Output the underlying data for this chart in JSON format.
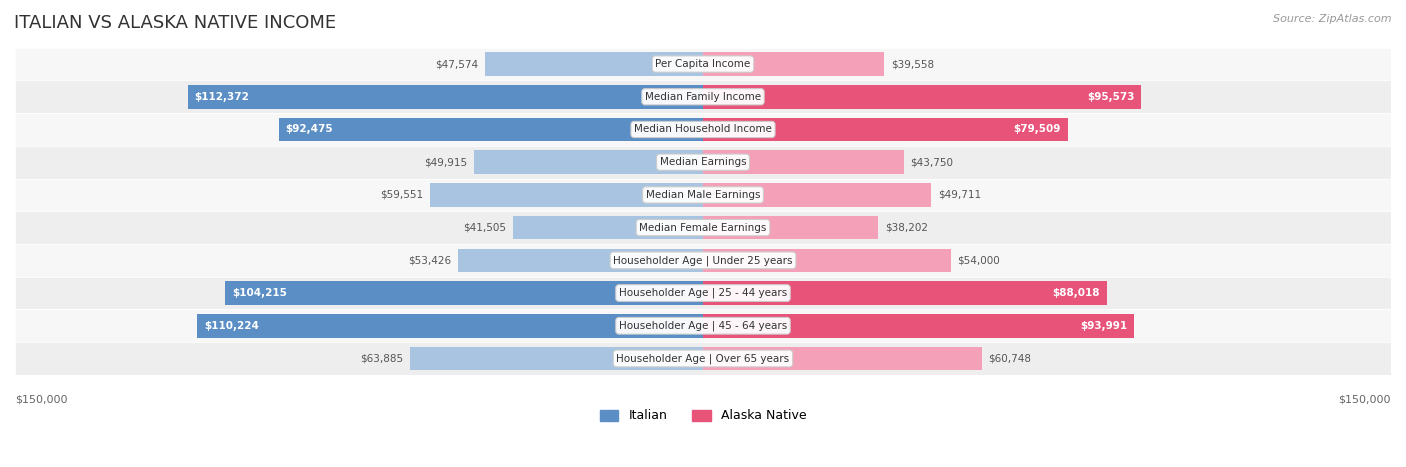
{
  "title": "ITALIAN VS ALASKA NATIVE INCOME",
  "source": "Source: ZipAtlas.com",
  "categories": [
    "Per Capita Income",
    "Median Family Income",
    "Median Household Income",
    "Median Earnings",
    "Median Male Earnings",
    "Median Female Earnings",
    "Householder Age | Under 25 years",
    "Householder Age | 25 - 44 years",
    "Householder Age | 45 - 64 years",
    "Householder Age | Over 65 years"
  ],
  "italian_values": [
    47574,
    112372,
    92475,
    49915,
    59551,
    41505,
    53426,
    104215,
    110224,
    63885
  ],
  "alaska_values": [
    39558,
    95573,
    79509,
    43750,
    49711,
    38202,
    54000,
    88018,
    93991,
    60748
  ],
  "italian_labels": [
    "$47,574",
    "$112,372",
    "$92,475",
    "$49,915",
    "$59,551",
    "$41,505",
    "$53,426",
    "$104,215",
    "$110,224",
    "$63,885"
  ],
  "alaska_labels": [
    "$39,558",
    "$95,573",
    "$79,509",
    "$43,750",
    "$49,711",
    "$38,202",
    "$54,000",
    "$88,018",
    "$93,991",
    "$60,748"
  ],
  "max_value": 150000,
  "italian_color_light": "#a8c4e0",
  "italian_color_dark": "#5b8ec4",
  "alaska_color_light": "#f4a0b8",
  "alaska_color_dark": "#e8537a",
  "bar_bg": "#f0f0f0",
  "row_bg_light": "#f7f7f7",
  "row_bg_dark": "#eeeeee",
  "label_color_outside": "#666666",
  "label_color_inside": "#ffffff",
  "inside_threshold": 70000,
  "legend_italian": "Italian",
  "legend_alaska": "Alaska Native",
  "xlim_label_left": "$150,000",
  "xlim_label_right": "$150,000"
}
